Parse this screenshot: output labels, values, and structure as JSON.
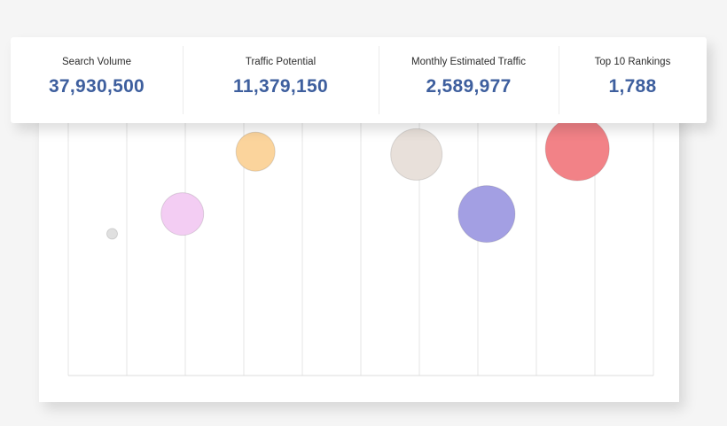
{
  "stats": [
    {
      "label": "Search Volume",
      "value": "37,930,500"
    },
    {
      "label": "Traffic Potential",
      "value": "11,379,150"
    },
    {
      "label": "Monthly Estimated Traffic",
      "value": "2,589,977"
    },
    {
      "label": "Top 10 Rankings",
      "value": "1,788"
    }
  ],
  "chart_data": {
    "type": "scatter",
    "grid": true,
    "xlim": [
      0,
      10
    ],
    "ylim": [
      0,
      1
    ],
    "points": [
      {
        "x": 0.75,
        "y": 0.5,
        "size": 6,
        "color": "#e0e0e0"
      },
      {
        "x": 1.95,
        "y": 0.57,
        "size": 24,
        "color": "#f3cdf3"
      },
      {
        "x": 3.2,
        "y": 0.79,
        "size": 22,
        "color": "#fbd49c"
      },
      {
        "x": 5.95,
        "y": 0.78,
        "size": 29,
        "color": "#e8e0da"
      },
      {
        "x": 7.15,
        "y": 0.57,
        "size": 32,
        "color": "#a39fe3"
      },
      {
        "x": 8.7,
        "y": 0.8,
        "size": 36,
        "color": "#f28287"
      }
    ]
  }
}
